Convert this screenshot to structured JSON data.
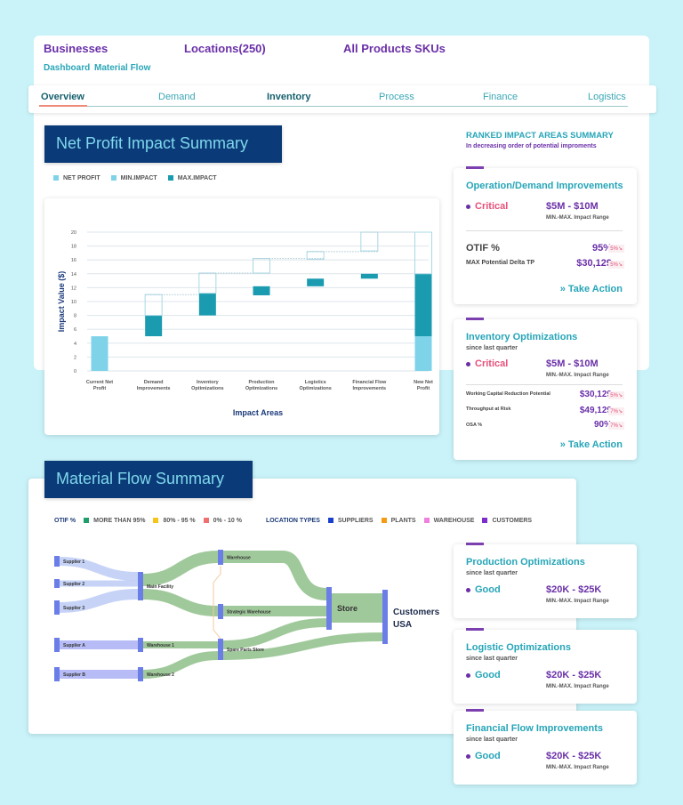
{
  "header": {
    "links": [
      "Businesses",
      "Locations(250)",
      "All Products SKUs"
    ],
    "breadcrumbs": [
      "Dashboard",
      "Material Flow"
    ]
  },
  "tabs": [
    {
      "label": "Overview",
      "active": true
    },
    {
      "label": "Demand"
    },
    {
      "label": "Inventory"
    },
    {
      "label": "Process"
    },
    {
      "label": "Finance"
    },
    {
      "label": "Logistics"
    }
  ],
  "net_profit": {
    "title": "Net Profit Impact Summary",
    "legend": [
      {
        "label": "NET PROFIT",
        "color": "#7fd3e8"
      },
      {
        "label": "MIN.IMPACT",
        "color": "#7fd3e8"
      },
      {
        "label": "MAX.IMPACT",
        "color": "#1b9bb0"
      }
    ]
  },
  "chart_data": {
    "type": "bar",
    "subtype": "waterfall",
    "xlabel": "Impact Areas",
    "ylabel": "Impact Value ($)",
    "ylim": [
      0,
      20
    ],
    "yticks": [
      0,
      2,
      4,
      6,
      8,
      10,
      12,
      14,
      16,
      18,
      20
    ],
    "grid": true,
    "categories": [
      "Current Net Profit",
      "Demand Improvements",
      "Inventory Optimizations",
      "Production Optimizations",
      "Logistics Optimizations",
      "Financial Flow Improvements",
      "New Net Profit"
    ],
    "net_profit": [
      [
        0,
        5
      ],
      null,
      null,
      null,
      null,
      null,
      [
        0,
        5
      ]
    ],
    "max_impact": [
      null,
      [
        5,
        8
      ],
      [
        8,
        11.2
      ],
      [
        10.9,
        12.2
      ],
      [
        12.2,
        13.3
      ],
      [
        13.3,
        14
      ],
      [
        5,
        14
      ]
    ],
    "min_impact_outline": [
      null,
      [
        8,
        11
      ],
      [
        11.2,
        14.1
      ],
      [
        14.1,
        16.2
      ],
      [
        16.1,
        17.2
      ],
      [
        17.3,
        20
      ],
      [
        14,
        20
      ]
    ]
  },
  "ranked": {
    "title": "RANKED IMPACT AREAS SUMMARY",
    "subtitle": "In decreasing order of potential improments"
  },
  "cards": [
    {
      "title": "Operation/Demand Improvements",
      "status": "Critical",
      "range": "$5M - $10M",
      "range_label": "MIN.-MAX. Impact Range",
      "metrics": [
        {
          "label": "OTIF %",
          "value": "95%",
          "badge": "5%↘"
        },
        {
          "label": "MAX Potential Delta TP",
          "value": "$30,129",
          "badge": "5%↘"
        }
      ],
      "action": "» Take Action"
    },
    {
      "title": "Inventory Optimizations",
      "since": "since last quarter",
      "status": "Critical",
      "range": "$5M - $10M",
      "range_label": "MIN.-MAX. Impact Range",
      "metrics": [
        {
          "label": "Working Capital Reduction Potential",
          "value": "$30,129",
          "badge": "5%↘"
        },
        {
          "label": "Throughput at Risk",
          "value": "$49,129",
          "badge": "7%↘"
        },
        {
          "label": "OSA %",
          "value": "90%",
          "badge": "7%↘"
        }
      ],
      "action": "» Take Action"
    },
    {
      "title": "Production Optimizations",
      "since": "since last quarter",
      "status": "Good",
      "range": "$20K - $25K",
      "range_label": "MIN.-MAX. Impact Range"
    },
    {
      "title": "Logistic Optimizations",
      "since": "since last quarter",
      "status": "Good",
      "range": "$20K - $25K",
      "range_label": "MIN.-MAX. Impact Range"
    },
    {
      "title": "Financial Flow Improvements",
      "since": "since last quarter",
      "status": "Good",
      "range": "$20K - $25K",
      "range_label": "MIN.-MAX. Impact Range"
    }
  ],
  "material_flow": {
    "title": "Material Flow Summary",
    "otif_label": "OTIF %",
    "otif_legend": [
      {
        "label": "MORE THAN 95%",
        "color": "#1e9e6a"
      },
      {
        "label": "80% - 95 %",
        "color": "#f5c518"
      },
      {
        "label": "0% - 10 %",
        "color": "#f07070"
      }
    ],
    "location_label": "LOCATION TYPES",
    "location_legend": [
      {
        "label": "SUPPLIERS",
        "color": "#1a3fcf"
      },
      {
        "label": "PLANTS",
        "color": "#f39c12"
      },
      {
        "label": "WAREHOUSE",
        "color": "#f07fe0"
      },
      {
        "label": "CUSTOMERS",
        "color": "#7b2ecc"
      }
    ],
    "nodes": [
      "Supplier 1",
      "Supplier 2",
      "Supplier 3",
      "Supplier A",
      "Supplier B",
      "Main Facility",
      "Warehouse 1",
      "Warehouse 2",
      "Warehouse",
      "Strategic Warehouse",
      "Spare Parts Store",
      "Store",
      "Customers USA"
    ]
  }
}
